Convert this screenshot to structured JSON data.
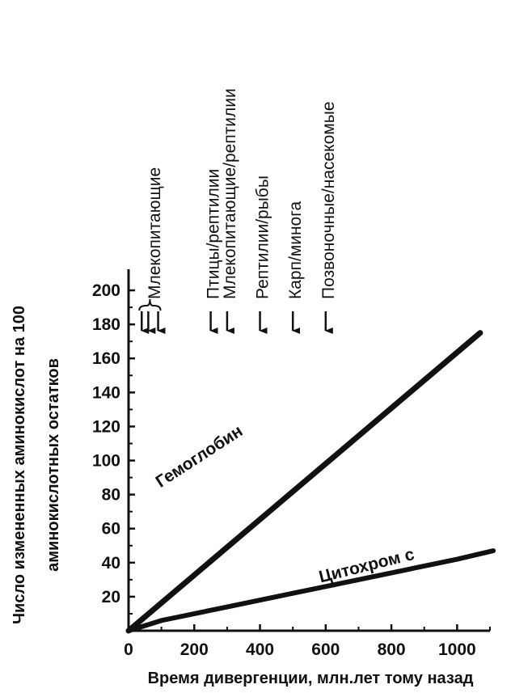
{
  "chart_data": {
    "type": "line",
    "xlabel": "Время дивергенции, млн.лет тому назад",
    "ylabel": "Число измененных аминокислот на 100",
    "ylabel2": "аминокислотных остатков",
    "xlim": [
      0,
      1100
    ],
    "ylim": [
      0,
      210
    ],
    "x_ticks": [
      0,
      200,
      400,
      600,
      800,
      1000
    ],
    "y_ticks": [
      20,
      40,
      60,
      80,
      100,
      120,
      140,
      160,
      180,
      200
    ],
    "grid": false,
    "series": [
      {
        "name": "Гемоглобин",
        "x": [
          0,
          1070
        ],
        "y": [
          0,
          175
        ]
      },
      {
        "name": "Цитохром c",
        "x": [
          0,
          100,
          300,
          600,
          1000,
          1110
        ],
        "y": [
          0,
          6,
          14,
          26,
          42,
          47
        ]
      }
    ],
    "annotations": [
      {
        "label": "Млекопитающие",
        "x": [
          40,
          60,
          90
        ],
        "grouped": true
      },
      {
        "label": "Птицы/рептилии",
        "x": 250
      },
      {
        "label": "Млекопитающие/рептилии",
        "x": 300
      },
      {
        "label": "Рептилии/рыбы",
        "x": 400
      },
      {
        "label": "Карп/минога",
        "x": 500
      },
      {
        "label": "Позвоночные/насекомые",
        "x": 600
      }
    ]
  }
}
